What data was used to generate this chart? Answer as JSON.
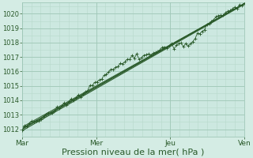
{
  "xlabel": "Pression niveau de la mer( hPa )",
  "bg_outer": "#d4ece4",
  "bg_inner": "#cce8e0",
  "grid_major_color": "#a0c8b8",
  "grid_minor_color": "#b8d8cc",
  "line_color": "#2a5a2a",
  "ylim": [
    1011.5,
    1020.8
  ],
  "xlim": [
    0.0,
    1.0
  ],
  "yticks": [
    1012,
    1013,
    1014,
    1015,
    1016,
    1017,
    1018,
    1019,
    1020
  ],
  "day_labels": [
    "Mar",
    "Mer",
    "Jeu",
    "Ven"
  ],
  "day_positions": [
    0.0,
    0.333,
    0.667,
    1.0
  ],
  "xlabel_fontsize": 8,
  "tick_fontsize": 6
}
